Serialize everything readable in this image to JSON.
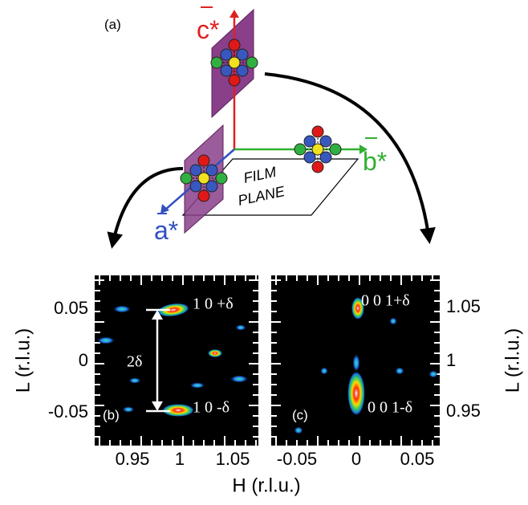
{
  "panel_a": {
    "label": "(a)",
    "c_axis": "c*",
    "b_axis": "b*",
    "a_axis": "a*",
    "film_plane": [
      "FILM",
      "PLANE"
    ]
  },
  "panel_b": {
    "label": "(b)",
    "peaks": [
      "1 0 +δ",
      "1 0 -δ"
    ],
    "spacing": "2δ",
    "xticks": [
      "0.95",
      "1",
      "1.05"
    ],
    "yticks": [
      "0.05",
      "0",
      "-0.05"
    ]
  },
  "panel_c": {
    "label": "(c)",
    "peaks": [
      "0 0 1+δ",
      "0 0 1-δ"
    ],
    "xticks": [
      "-0.05",
      "0",
      "0.05"
    ],
    "yticks": [
      "1.05",
      "1",
      "0.95"
    ]
  },
  "x_label": "H (r.l.u.)",
  "y_label_left": "L (r.l.u.)",
  "y_label_right": "L (r.l.u.)"
}
